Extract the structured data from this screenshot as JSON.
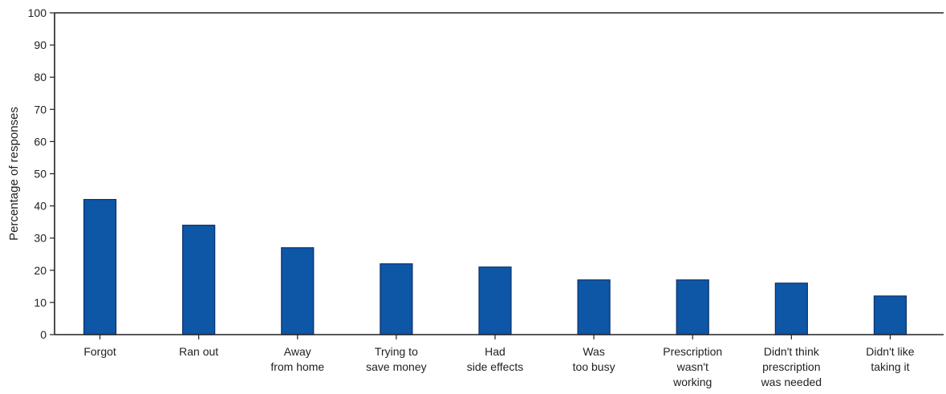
{
  "chart_data": {
    "type": "bar",
    "title": "",
    "xlabel": "",
    "ylabel": "Percentage of responses",
    "ylim": [
      0,
      100
    ],
    "yticks": [
      0,
      10,
      20,
      30,
      40,
      50,
      60,
      70,
      80,
      90,
      100
    ],
    "categories": [
      [
        "Forgot"
      ],
      [
        "Ran out"
      ],
      [
        "Away",
        "from home"
      ],
      [
        "Trying to",
        "save money"
      ],
      [
        "Had",
        "side effects"
      ],
      [
        "Was",
        "too busy"
      ],
      [
        "Prescription",
        "wasn't",
        "working"
      ],
      [
        "Didn't think",
        "prescription",
        "was needed"
      ],
      [
        "Didn't like",
        "taking it"
      ]
    ],
    "values": [
      42,
      34,
      27,
      22,
      21,
      17,
      17,
      16,
      12
    ],
    "bar_color": "#0e56a6",
    "grid": false
  }
}
